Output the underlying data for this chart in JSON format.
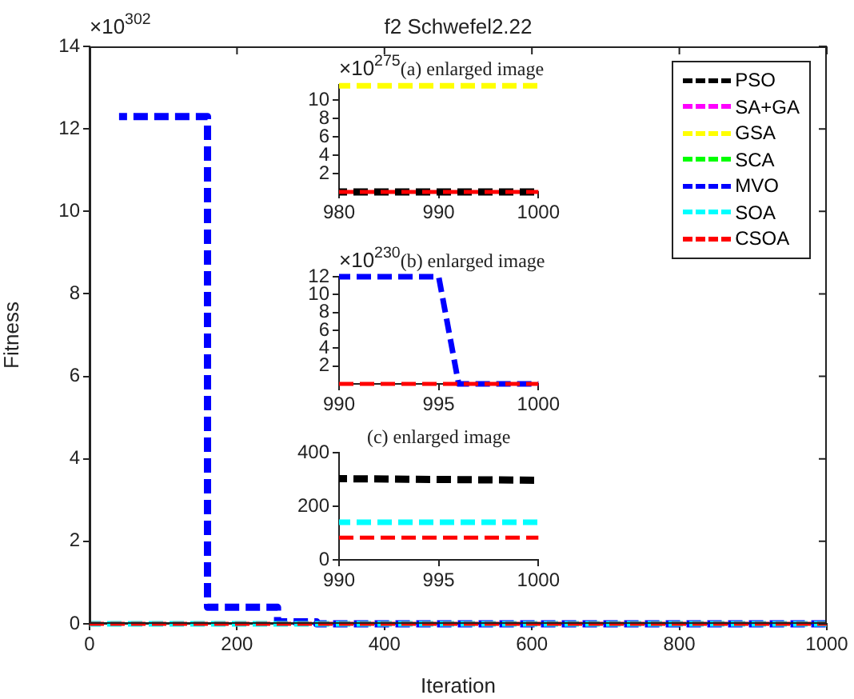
{
  "chart_data": [
    {
      "type": "line",
      "title": "f2 Schwefel2.22",
      "xlabel": "Iteration",
      "ylabel": "Fitness",
      "annotations": [
        "×10$^{302}$"
      ],
      "xlim": [
        0,
        1000
      ],
      "xticks": [
        0,
        200,
        400,
        600,
        800,
        1000
      ],
      "ylim": [
        0,
        14
      ],
      "yticks": [
        0,
        2,
        4,
        6,
        8,
        10,
        12,
        14
      ],
      "grid": false,
      "legend": "top right",
      "line_style": "dashed",
      "series": [
        {
          "name": "PSO",
          "color": "#000000"
        },
        {
          "name": "SA+GA",
          "color": "#ff00ff"
        },
        {
          "name": "GSA",
          "color": "#ffff00"
        },
        {
          "name": "SCA",
          "color": "#00ff00"
        },
        {
          "name": "MVO",
          "color": "#0000ff",
          "x": [
            40,
            160,
            160,
            255,
            255,
            308,
            308,
            1000
          ],
          "values": [
            12.3,
            12.3,
            0.4,
            0.4,
            0.05,
            0.05,
            0,
            0
          ]
        },
        {
          "name": "SOA",
          "color": "#00ffff",
          "x": [
            0,
            1000
          ],
          "values": [
            0,
            0
          ]
        },
        {
          "name": "CSOA",
          "color": "#ff0000",
          "x": [
            0,
            1000
          ],
          "values": [
            0,
            0
          ]
        }
      ]
    },
    {
      "type": "line",
      "title": "(a) enlarged image",
      "annotations": [
        "×10$^{275}$"
      ],
      "xlim": [
        980,
        1000
      ],
      "xticks": [
        980,
        990,
        1000
      ],
      "ylim": [
        0,
        11.7
      ],
      "yticks": [
        2,
        4,
        6,
        8,
        10
      ],
      "grid": false,
      "line_style": "dashed",
      "series": [
        {
          "color": "#000000",
          "x": [
            980,
            1000
          ],
          "values": [
            0,
            0
          ]
        },
        {
          "color": "#ffff00",
          "x": [
            980,
            1000
          ],
          "values": [
            11.6,
            11.6
          ]
        },
        {
          "color": "#ff0000",
          "x": [
            980,
            1000
          ],
          "values": [
            0,
            0
          ]
        }
      ]
    },
    {
      "type": "line",
      "title": "(b) enlarged image",
      "annotations": [
        "×10$^{230}$"
      ],
      "xlim": [
        990,
        1000
      ],
      "xticks": [
        990,
        995,
        1000
      ],
      "ylim": [
        0,
        12
      ],
      "yticks": [
        2,
        4,
        6,
        8,
        10,
        12
      ],
      "grid": false,
      "line_style": "dashed",
      "series": [
        {
          "color": "#0000ff",
          "x": [
            990,
            995,
            996,
            1000
          ],
          "values": [
            12,
            12,
            0,
            0
          ]
        },
        {
          "color": "#ff0000",
          "x": [
            990,
            1000
          ],
          "values": [
            0,
            0
          ]
        }
      ]
    },
    {
      "type": "line",
      "title": "(c) enlarged image",
      "xlim": [
        990,
        1000
      ],
      "xticks": [
        990,
        995,
        1000
      ],
      "ylim": [
        0,
        400
      ],
      "yticks": [
        0,
        200,
        400
      ],
      "grid": false,
      "line_style": "dashed",
      "series": [
        {
          "color": "#000000",
          "x": [
            990,
            1000
          ],
          "values": [
            303,
            297
          ]
        },
        {
          "color": "#00ffff",
          "x": [
            990,
            1000
          ],
          "values": [
            140,
            140
          ]
        },
        {
          "color": "#ff0000",
          "x": [
            990,
            1000
          ],
          "values": [
            83,
            83
          ]
        }
      ]
    }
  ]
}
